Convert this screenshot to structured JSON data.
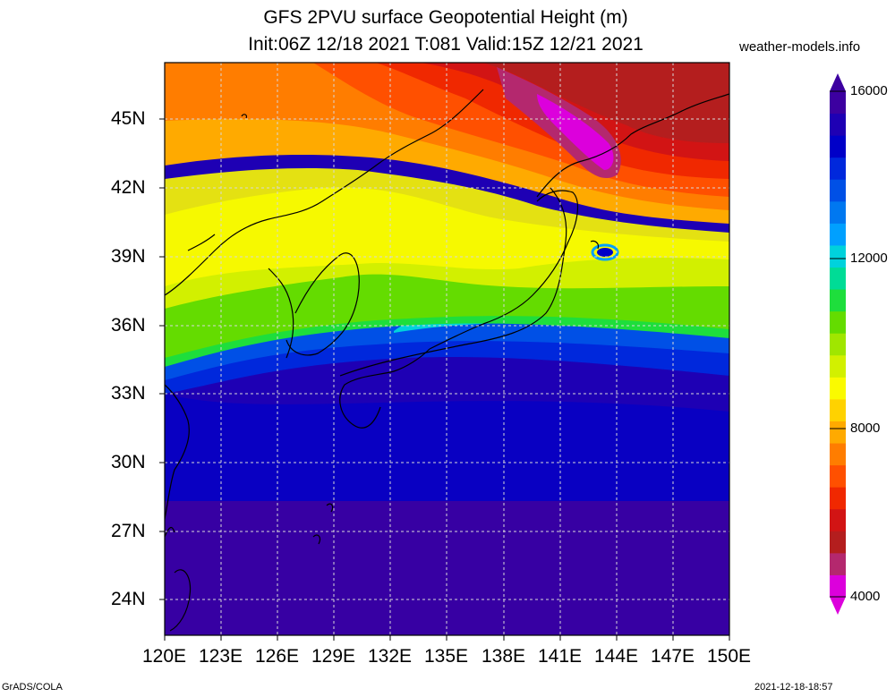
{
  "title": {
    "line1": "GFS 2PVU surface Geopotential Height (m)",
    "line2": "Init:06Z 12/18 2021 T:081 Valid:15Z 12/21 2021"
  },
  "credit": "weather-models.info",
  "map": {
    "lat_labels": [
      "45N",
      "42N",
      "39N",
      "36N",
      "33N",
      "30N",
      "27N",
      "24N"
    ],
    "lon_labels": [
      "120E",
      "123E",
      "126E",
      "129E",
      "132E",
      "135E",
      "138E",
      "141E",
      "144E",
      "147E",
      "150E"
    ],
    "lat_range": [
      22.5,
      47.5
    ],
    "lon_range": [
      120,
      150
    ]
  },
  "colorbar": {
    "labels": [
      "16000",
      "12000",
      "8000",
      "4000"
    ],
    "colors": [
      "#dc00dc",
      "#b4286e",
      "#b41e1e",
      "#d21414",
      "#f02800",
      "#ff5000",
      "#ff7d00",
      "#ffaa00",
      "#ffd200",
      "#fafa00",
      "#d2f000",
      "#a0e600",
      "#64dc00",
      "#1ede3c",
      "#00dc96",
      "#00d2dc",
      "#00a0ff",
      "#0078f0",
      "#0050e6",
      "#0028dc",
      "#0000c8",
      "#1e00b4",
      "#3c00a0"
    ]
  },
  "footer": {
    "left": "GrADS/COLA",
    "right": "2021-12-18-18:57"
  }
}
